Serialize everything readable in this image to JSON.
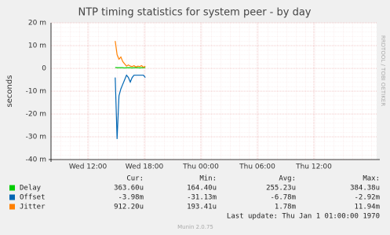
{
  "chart_data": {
    "type": "line",
    "title": "NTP timing statistics for system peer - by day",
    "y_label": "seconds",
    "side_text": "RRDTOOL / TOBI OETIKER",
    "x": [
      14.9,
      15.1,
      15.3,
      15.5,
      15.7,
      15.9,
      16.1,
      16.3,
      16.5,
      16.7,
      16.9,
      17.1,
      17.3,
      17.5,
      17.7,
      17.9,
      18.1
    ],
    "series": [
      {
        "name": "Delay",
        "color": "#00cc00",
        "values": [
          0.0004,
          0.0003,
          0.0003,
          0.0003,
          0.0003,
          0.0002,
          0.0003,
          0.0003,
          0.0003,
          0.0002,
          0.0003,
          0.0003,
          0.0003,
          0.0002,
          0.0003,
          0.0003,
          0.0004
        ],
        "stats": [
          "363.60u",
          "164.40u",
          "255.23u",
          "384.38u"
        ]
      },
      {
        "name": "Offset",
        "color": "#0066b3",
        "values": [
          -0.004,
          -0.031,
          -0.012,
          -0.009,
          -0.007,
          -0.005,
          -0.003,
          -0.004,
          -0.006,
          -0.004,
          -0.003,
          -0.003,
          -0.003,
          -0.003,
          -0.003,
          -0.003,
          -0.004
        ],
        "stats": [
          "-3.98m",
          "-31.13m",
          "-6.78m",
          "-2.92m"
        ]
      },
      {
        "name": "Jitter",
        "color": "#ff8000",
        "values": [
          0.012,
          0.006,
          0.004,
          0.005,
          0.003,
          0.002,
          0.001,
          0.0015,
          0.001,
          0.0008,
          0.0012,
          0.0006,
          0.001,
          0.0008,
          0.0012,
          0.0005,
          0.0009
        ],
        "stats": [
          "912.20u",
          "193.41u",
          "1.78m",
          "11.94m"
        ]
      }
    ],
    "stat_headers": [
      "Cur:",
      "Min:",
      "Avg:",
      "Max:"
    ],
    "xlim": [
      8.08,
      42.67
    ],
    "xticks": [
      {
        "value": 12,
        "label": "Wed 12:00"
      },
      {
        "value": 18,
        "label": "Wed 18:00"
      },
      {
        "value": 24,
        "label": "Thu 00:00"
      },
      {
        "value": 30,
        "label": "Thu 06:00"
      },
      {
        "value": 36,
        "label": "Thu 12:00"
      }
    ],
    "ylim": [
      -0.04,
      0.02
    ],
    "yticks": [
      {
        "value": 0.02,
        "label": "20 m"
      },
      {
        "value": 0.01,
        "label": "10 m"
      },
      0,
      {
        "value": -0.01,
        "label": "-10 m"
      },
      {
        "value": -0.02,
        "label": "-20 m"
      },
      {
        "value": -0.03,
        "label": "-30 m"
      },
      {
        "value": -0.04,
        "label": "-40 m"
      }
    ],
    "grid": true,
    "last_update": "Last update: Thu Jan  1 01:00:00 1970",
    "footer": "Munin 2.0.75"
  }
}
